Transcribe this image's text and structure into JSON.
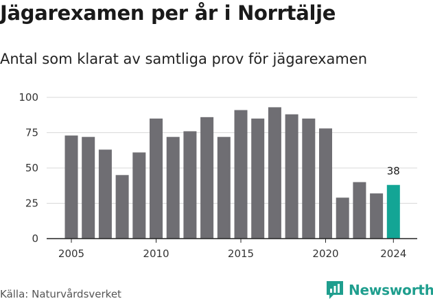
{
  "title": "Jägarexamen per år i Norrtälje",
  "subtitle": "Antal som klarat av samtliga prov för jägarexamen",
  "source": "Källa: Naturvårdsverket",
  "brand": {
    "name": "Newsworthy",
    "icon": "newsworthy-logo-icon",
    "color": "#1f9e8e"
  },
  "colors": {
    "bar": "#6f6e73",
    "highlight": "#13a595",
    "grid": "#d9d9d9",
    "axis": "#222222"
  },
  "chart_data": {
    "type": "bar",
    "x": [
      2005,
      2006,
      2007,
      2008,
      2009,
      2010,
      2011,
      2012,
      2013,
      2014,
      2015,
      2016,
      2017,
      2018,
      2019,
      2020,
      2021,
      2022,
      2023,
      2024
    ],
    "values": [
      73,
      72,
      63,
      45,
      61,
      85,
      72,
      76,
      86,
      72,
      91,
      85,
      93,
      88,
      85,
      78,
      29,
      40,
      32,
      38
    ],
    "x_ticks": [
      "2005",
      "2010",
      "2015",
      "2020",
      "2024"
    ],
    "y_ticks": [
      "0",
      "25",
      "50",
      "75",
      "100"
    ],
    "ylim": [
      0,
      100
    ],
    "highlight": {
      "x": 2024,
      "label": "38"
    },
    "grid": "horizontal",
    "xlabel": "",
    "ylabel": ""
  }
}
